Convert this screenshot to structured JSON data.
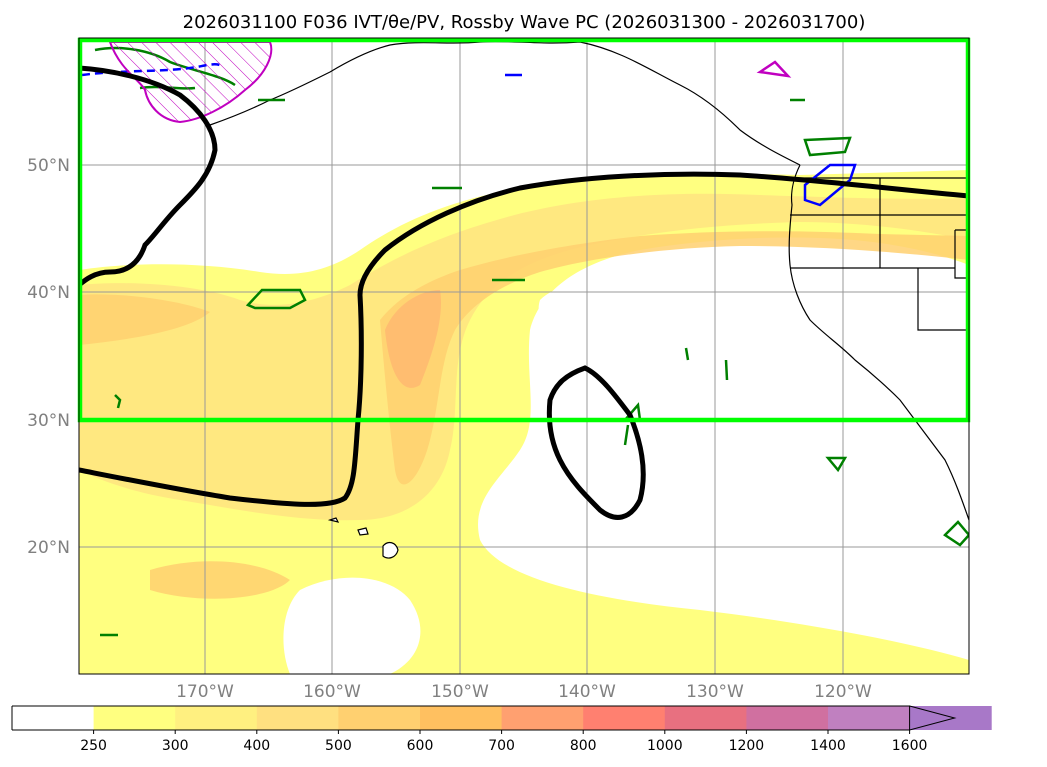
{
  "title": "2026031100 F036 IVT/θe/PV, Rossby Wave PC (2026031300 - 2026031700)",
  "map": {
    "lat_labels": [
      "50°N",
      "40°N",
      "30°N",
      "20°N"
    ],
    "lon_labels": [
      "170°W",
      "160°W",
      "150°W",
      "140°W",
      "130°W",
      "120°W"
    ],
    "gridlines": true,
    "highlight_box_color": "#00ff00",
    "rossby_contour_color": "#000000",
    "theta_e_contour_color": "#008000",
    "pv_contour_color": "#0000ff",
    "pv_hatch_color": "#c000c0"
  },
  "colorbar": {
    "levels": [
      "250",
      "300",
      "400",
      "500",
      "600",
      "700",
      "800",
      "1000",
      "1200",
      "1400",
      "1600"
    ],
    "colors": [
      "#ffffff",
      "#ffff80",
      "#fff080",
      "#ffe080",
      "#ffd070",
      "#ffc060",
      "#ffa070",
      "#ff8070",
      "#e87080",
      "#d070a0",
      "#c080c0",
      "#a878c8"
    ],
    "extend": "max"
  }
}
